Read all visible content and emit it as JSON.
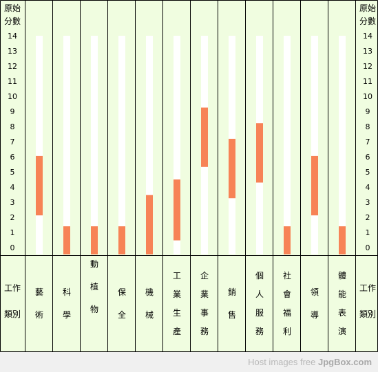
{
  "chart_data": {
    "type": "bar",
    "subtype": "floating-range",
    "axis_title_lines": [
      "原始",
      "分數"
    ],
    "ylim": [
      0,
      14
    ],
    "yticks": [
      "0",
      "1",
      "2",
      "3",
      "4",
      "5",
      "6",
      "7",
      "8",
      "9",
      "10",
      "11",
      "12",
      "13",
      "14"
    ],
    "bottom_side_label_lines": [
      "工作",
      "類別"
    ],
    "categories": [
      {
        "chars": [
          "藝",
          "術"
        ],
        "range": [
          2.5,
          6.3
        ]
      },
      {
        "chars": [
          "科",
          "學"
        ],
        "range": [
          0,
          1.8
        ]
      },
      {
        "chars": [
          "動",
          "植",
          "物"
        ],
        "range": [
          0,
          1.8
        ]
      },
      {
        "chars": [
          "保",
          "全"
        ],
        "range": [
          0,
          1.8
        ]
      },
      {
        "chars": [
          "機",
          "械"
        ],
        "range": [
          0,
          3.8
        ]
      },
      {
        "chars": [
          "工",
          "業",
          "生",
          "產"
        ],
        "range": [
          0.9,
          4.8
        ]
      },
      {
        "chars": [
          "企",
          "業",
          "事",
          "務"
        ],
        "range": [
          5.6,
          9.4
        ]
      },
      {
        "chars": [
          "銷",
          "售"
        ],
        "range": [
          3.6,
          7.4
        ]
      },
      {
        "chars": [
          "個",
          "人",
          "服",
          "務"
        ],
        "range": [
          4.6,
          8.4
        ]
      },
      {
        "chars": [
          "社",
          "會",
          "福",
          "利"
        ],
        "range": [
          0,
          1.8
        ]
      },
      {
        "chars": [
          "領",
          "導"
        ],
        "range": [
          2.5,
          6.3
        ]
      },
      {
        "chars": [
          "體",
          "能",
          "表",
          "演"
        ],
        "range": [
          0,
          1.8
        ]
      }
    ],
    "colors": {
      "background": "#f0fde0",
      "track": "#ffffff",
      "bar": "#f78356",
      "border": "#000000",
      "text": "#000000"
    }
  },
  "watermark": {
    "prefix": "Host images free",
    "brand": "JpgBox.com"
  }
}
